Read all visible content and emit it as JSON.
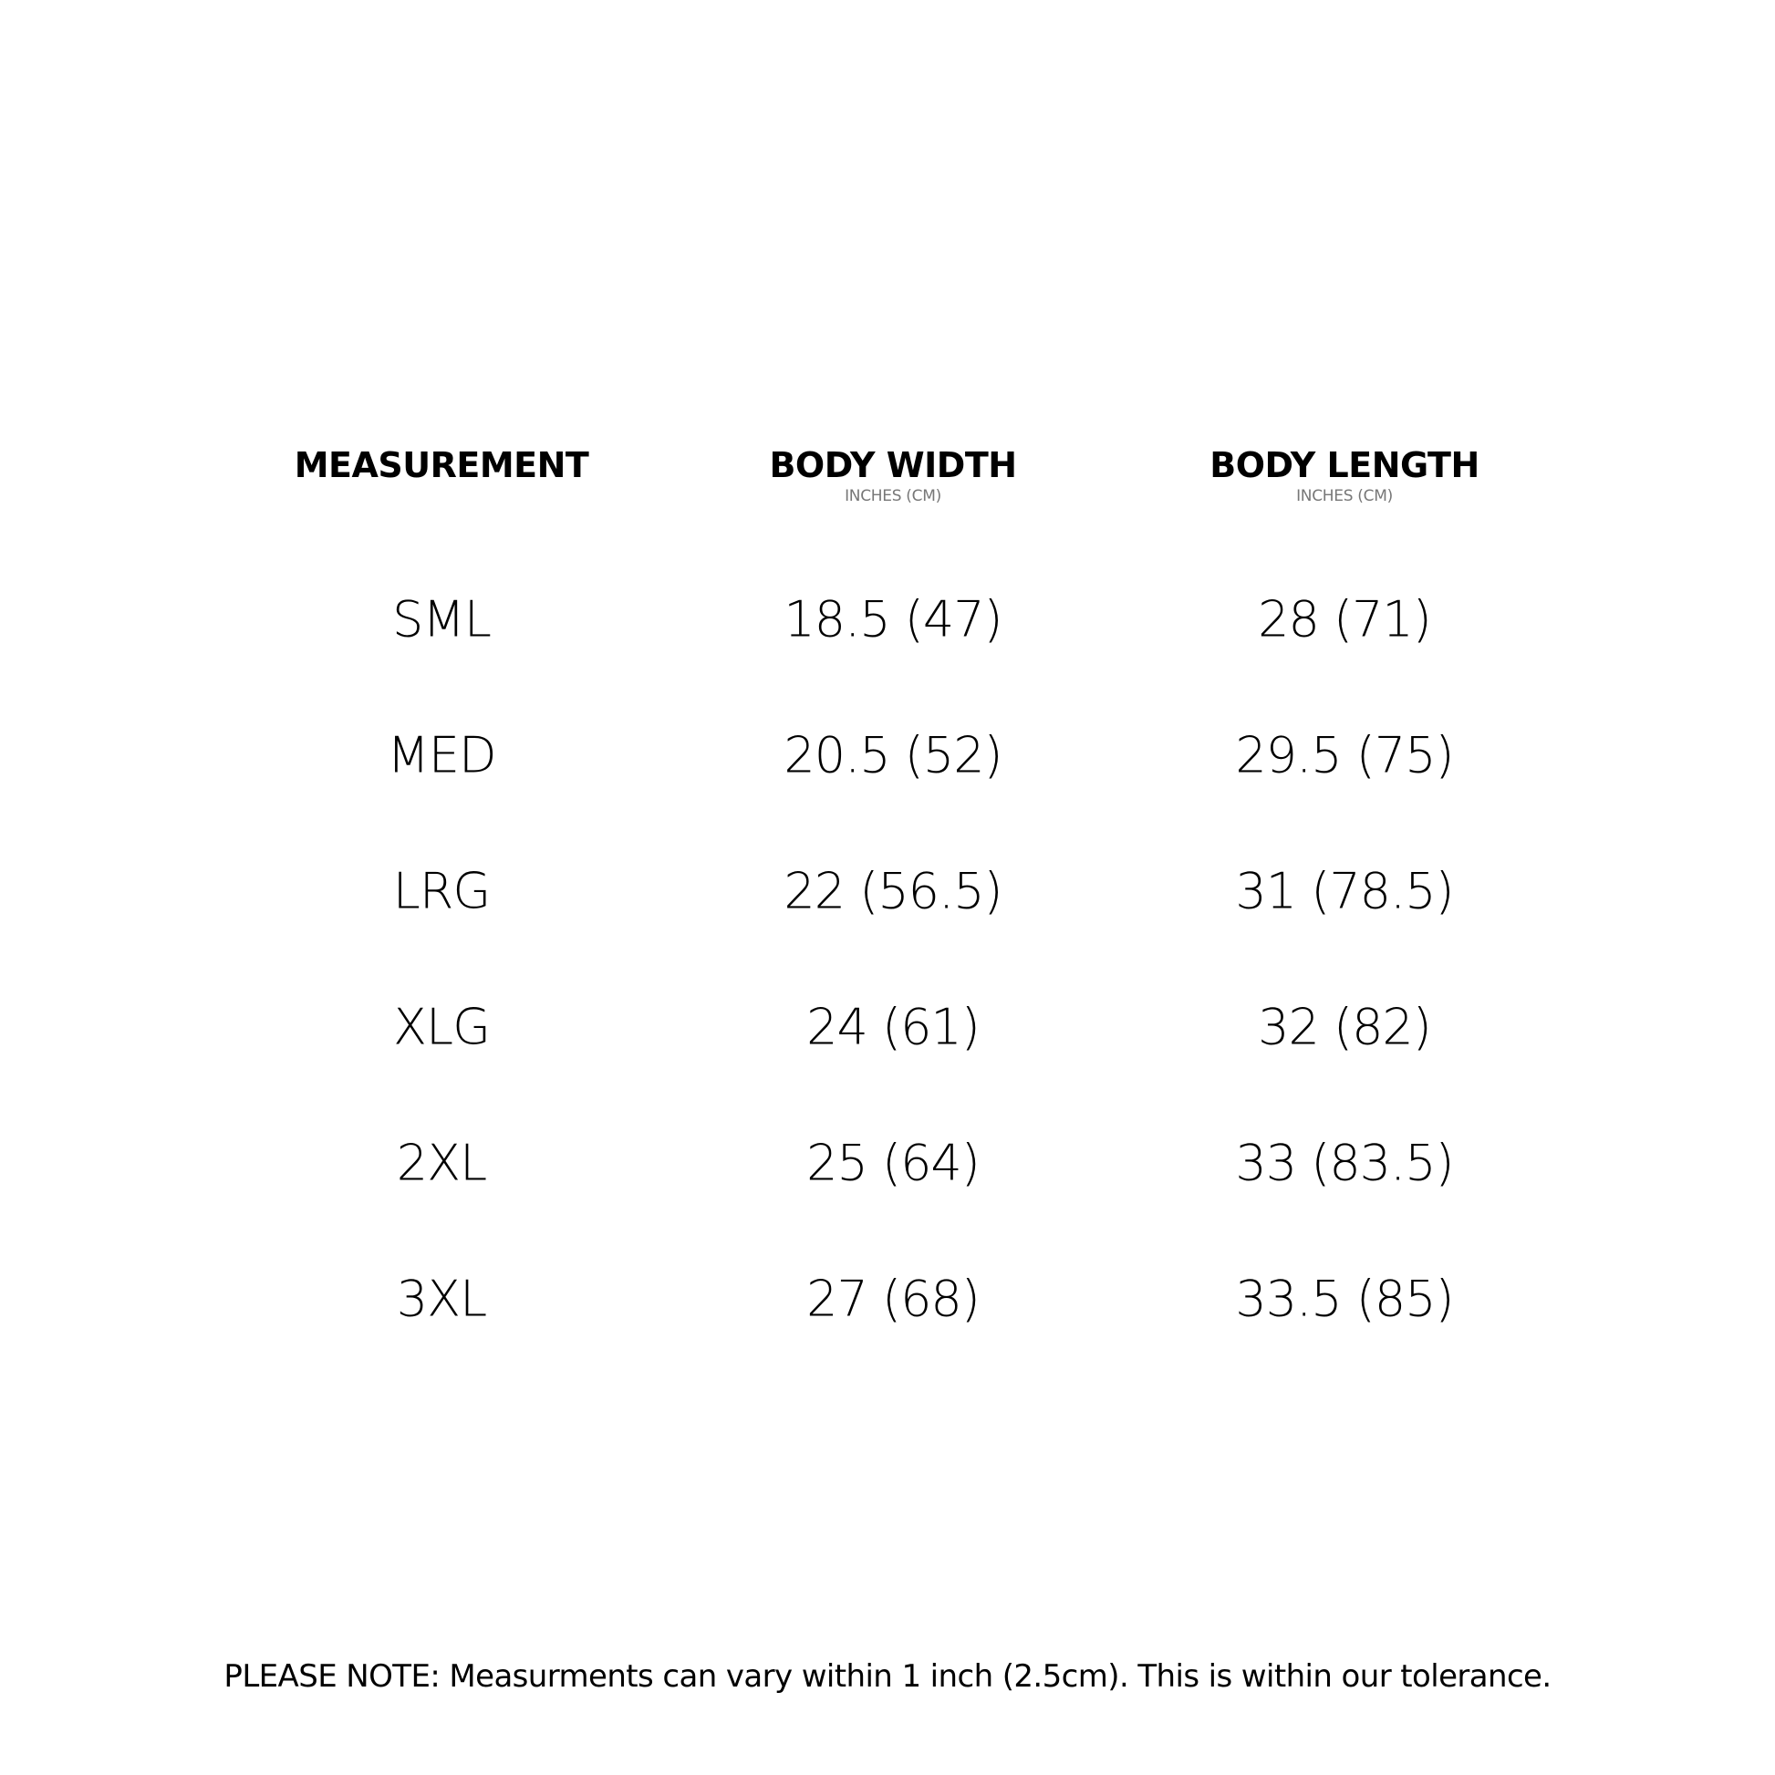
{
  "headers": [
    {
      "label": "MEASUREMENT",
      "unit": ""
    },
    {
      "label": "BODY WIDTH",
      "unit": "INCHES (CM)"
    },
    {
      "label": "BODY LENGTH",
      "unit": "INCHES (CM)"
    }
  ],
  "rows": [
    {
      "size": "SML",
      "width": "18.5 (47)",
      "length": "28 (71)"
    },
    {
      "size": "MED",
      "width": "20.5 (52)",
      "length": "29.5 (75)"
    },
    {
      "size": "LRG",
      "width": "22 (56.5)",
      "length": "31 (78.5)"
    },
    {
      "size": "XLG",
      "width": "24 (61)",
      "length": "32 (82)"
    },
    {
      "size": "2XL",
      "width": "25 (64)",
      "length": "33 (83.5)"
    },
    {
      "size": "3XL",
      "width": "27 (68)",
      "length": "33.5 (85)"
    }
  ],
  "note": "PLEASE NOTE: Measurments can vary within 1 inch (2.5cm). This is within our tolerance."
}
